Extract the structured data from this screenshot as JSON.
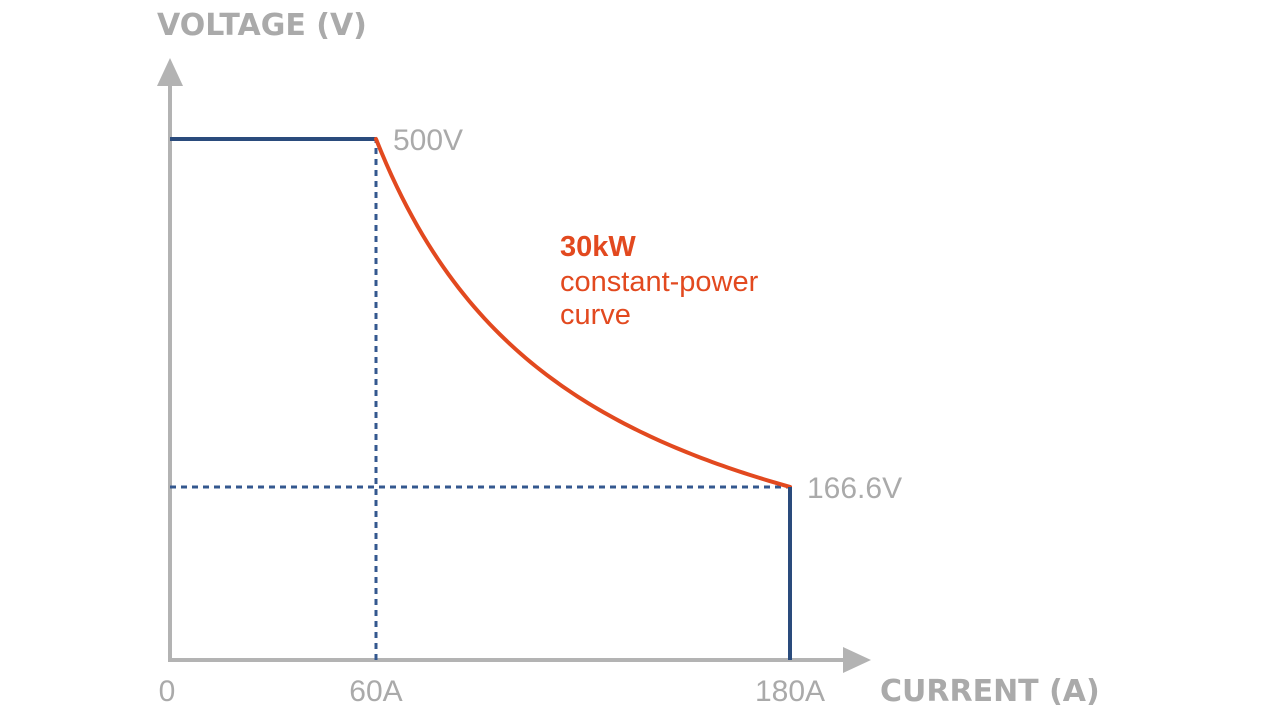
{
  "chart_data": {
    "type": "line",
    "xlabel": "CURRENT (A)",
    "ylabel": "VOLTAGE (V)",
    "xlim": [
      0,
      190
    ],
    "ylim": [
      0,
      500
    ],
    "x_tick_labels": [
      {
        "x": 0,
        "label": "0"
      },
      {
        "x": 60,
        "label": "60A"
      },
      {
        "x": 180,
        "label": "180A"
      }
    ],
    "y_value_labels": [
      {
        "x": 60,
        "y": 500,
        "label": "500V"
      },
      {
        "x": 180,
        "y": 166.6,
        "label": "166.6V"
      }
    ],
    "series": [
      {
        "role": "voltage-limit",
        "points": [
          [
            0,
            500
          ],
          [
            60,
            500
          ]
        ]
      },
      {
        "role": "constant-power",
        "power": 30000,
        "x_range": [
          60,
          180
        ]
      },
      {
        "role": "current-limit",
        "points": [
          [
            180,
            166.6
          ],
          [
            180,
            0
          ]
        ]
      }
    ],
    "reference_lines": [
      {
        "orientation": "vertical",
        "x": 60,
        "y_from": 0,
        "y_to": 500
      },
      {
        "orientation": "horizontal",
        "y": 166.6,
        "x_from": 0,
        "x_to": 180
      }
    ],
    "annotation": {
      "line1": "30kW",
      "line2": "constant-power",
      "line3": "curve"
    },
    "colors": {
      "axis": "#b3b3b3",
      "axis_text": "#aaaaaa",
      "limit_line": "#2a4b7c",
      "reference_line": "#34588f",
      "curve": "#e2491f",
      "annotation": "#e2491f"
    }
  }
}
